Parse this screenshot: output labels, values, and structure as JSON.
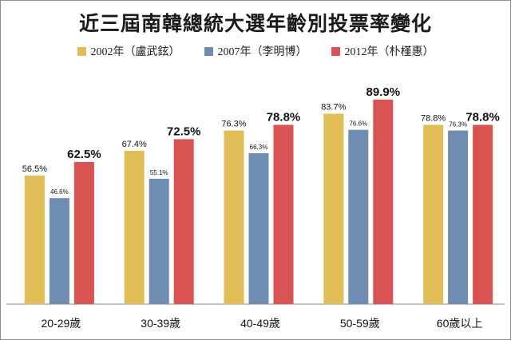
{
  "chart_data": {
    "type": "bar",
    "title": "近三屆南韓總統大選年齡別投票率變化",
    "categories": [
      "20-29歲",
      "30-39歲",
      "40-49歲",
      "50-59歲",
      "60歲以上"
    ],
    "series": [
      {
        "name": "2002年（盧武鉉）",
        "color": "#e0be55",
        "values": [
          56.5,
          67.4,
          76.3,
          83.7,
          78.8
        ],
        "labels": [
          "56.5%",
          "67.4%",
          "76.3%",
          "83.7%",
          "78.8%"
        ]
      },
      {
        "name": "2007年（李明博）",
        "color": "#6f8db3",
        "values": [
          46.6,
          55.1,
          66.3,
          76.6,
          76.3
        ],
        "labels": [
          "46.6%",
          "55.1%",
          "66.3%",
          "76.6%",
          "76.3%"
        ]
      },
      {
        "name": "2012年（朴槿惠）",
        "color": "#d95353",
        "values": [
          62.5,
          72.5,
          78.8,
          89.9,
          78.8
        ],
        "labels": [
          "62.5%",
          "72.5%",
          "78.8%",
          "89.9%",
          "78.8%"
        ]
      }
    ],
    "ylim": [
      0,
      100
    ],
    "grid": false,
    "legend_position": "top"
  }
}
